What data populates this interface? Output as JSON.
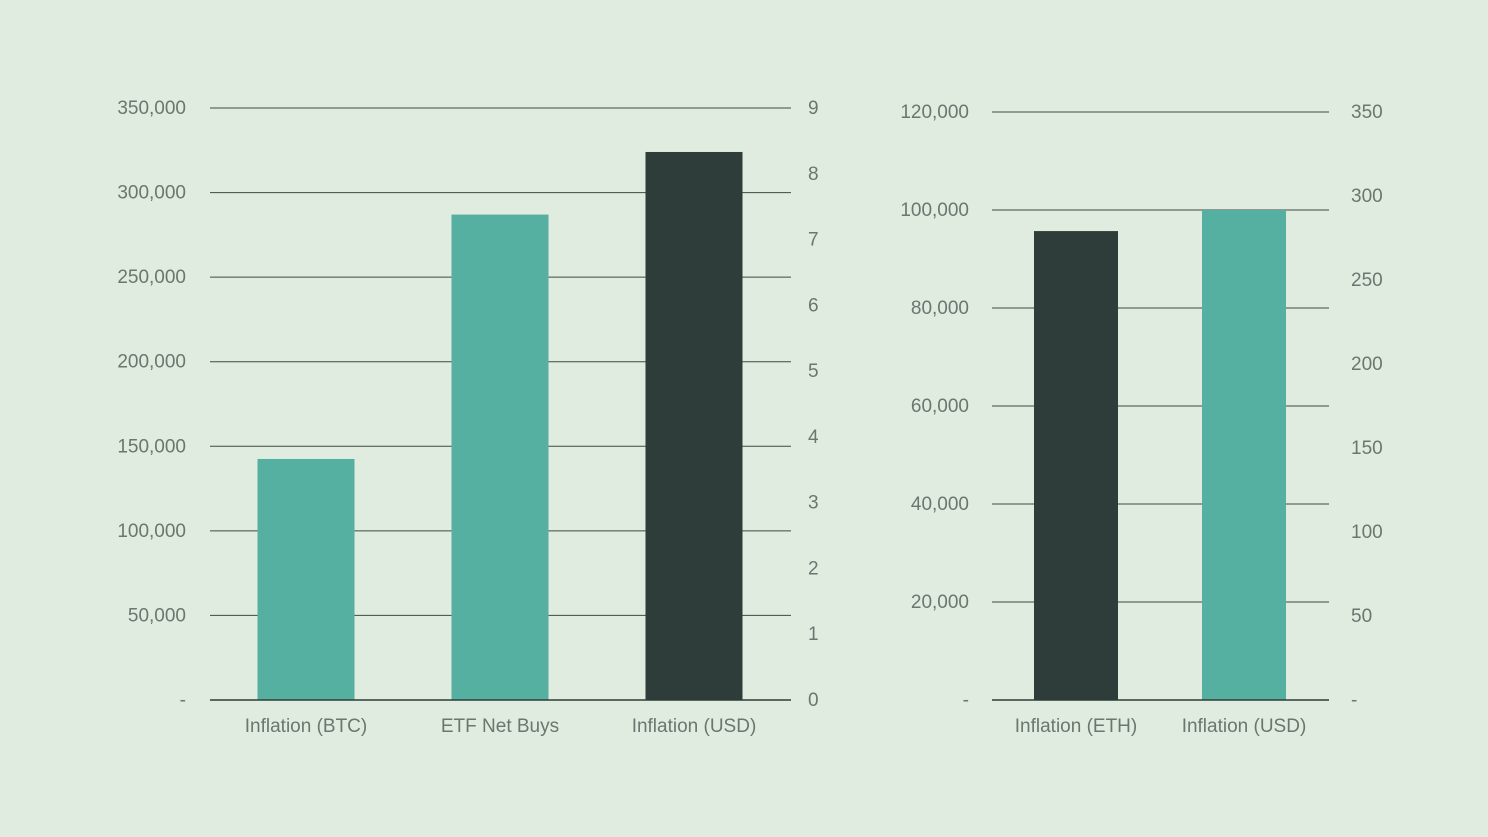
{
  "colors": {
    "background": "#dfecdf",
    "teal": "#55b0a1",
    "dark": "#2e3d39",
    "gridline": "#3f4a44",
    "tick_text": "#6b7670"
  },
  "chart_data": [
    {
      "type": "bar",
      "categories": [
        "Inflation (BTC)",
        "ETF Net Buys",
        "Inflation (USD)"
      ],
      "values": [
        142500,
        287000,
        324000
      ],
      "bar_colors": [
        "#55b0a1",
        "#55b0a1",
        "#2e3d39"
      ],
      "ylim": [
        0,
        350000
      ],
      "y_ticks": [
        "-",
        "50,000",
        "100,000",
        "150,000",
        "200,000",
        "250,000",
        "300,000",
        "350,000"
      ],
      "ylim_right": [
        0,
        9
      ],
      "y2_ticks": [
        "0",
        "1",
        "2",
        "3",
        "4",
        "5",
        "6",
        "7",
        "8",
        "9"
      ],
      "grid": true
    },
    {
      "type": "bar",
      "categories": [
        "Inflation (ETH)",
        "Inflation (USD)"
      ],
      "values": [
        95700,
        100000
      ],
      "bar_colors": [
        "#2e3d39",
        "#55b0a1"
      ],
      "ylim": [
        0,
        120000
      ],
      "y_ticks": [
        "-",
        "20,000",
        "40,000",
        "60,000",
        "80,000",
        "100,000",
        "120,000"
      ],
      "ylim_right": [
        0,
        350
      ],
      "y2_ticks": [
        "-",
        "50",
        "100",
        "150",
        "200",
        "250",
        "300",
        "350"
      ],
      "grid": true
    }
  ]
}
